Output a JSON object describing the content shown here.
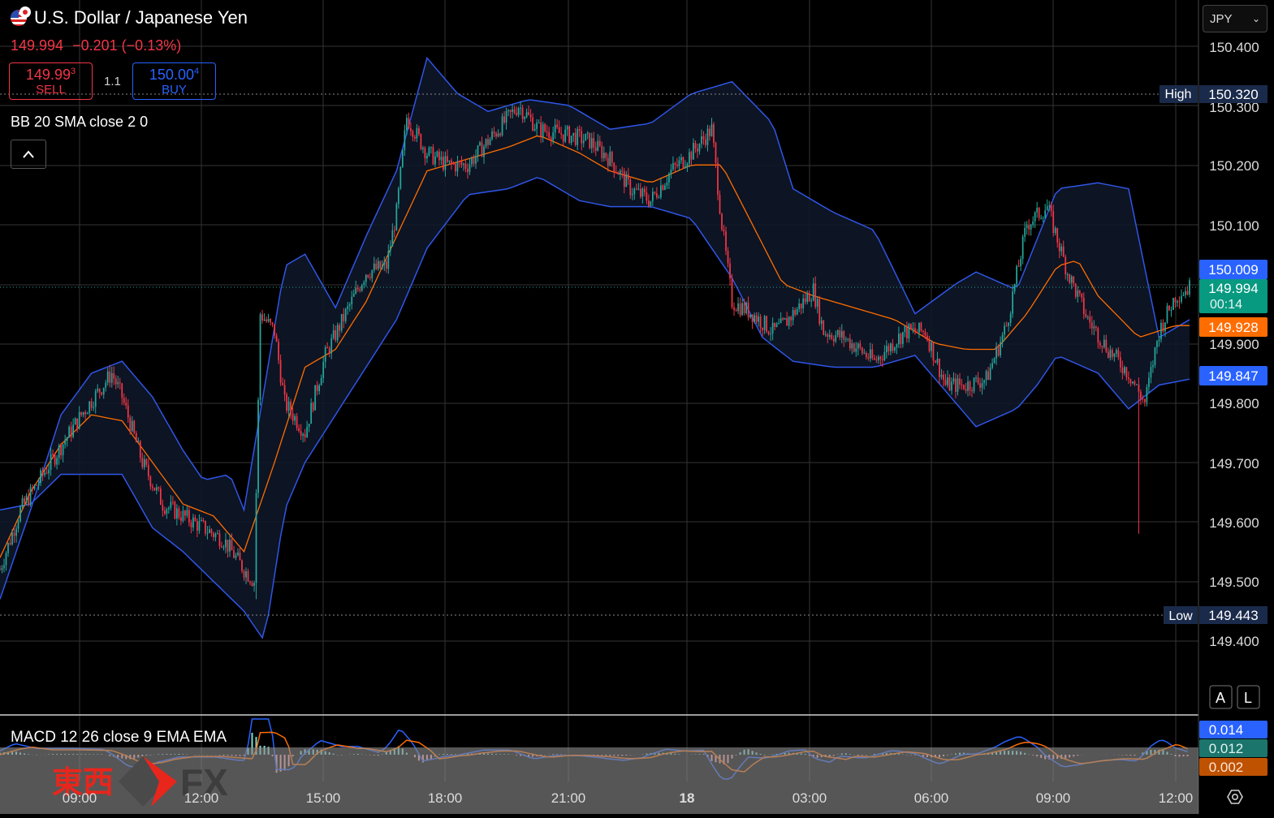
{
  "header": {
    "title": "U.S. Dollar / Japanese Yen",
    "last": "149.994",
    "change": "−0.201",
    "change_pct": "(−0.13%)",
    "sell_price": "149.99",
    "sell_sup": "3",
    "sell_label": "SELL",
    "buy_price": "150.00",
    "buy_sup": "4",
    "buy_label": "BUY",
    "spread": "1.1",
    "indicator": "BB 20 SMA close 2 0"
  },
  "currency_selector": "JPY",
  "macd_label": "MACD 12 26 close 9 EMA EMA",
  "price_axis": {
    "ticks": [
      "150.400",
      "150.300",
      "150.200",
      "150.100",
      "149.900",
      "149.800",
      "149.700",
      "149.600",
      "149.500",
      "149.400"
    ],
    "high_label": "High",
    "high_value": "150.320",
    "low_label": "Low",
    "low_value": "149.443",
    "bb_upper": "150.009",
    "last_price": "149.994",
    "countdown": "00:14",
    "bb_basis": "149.928",
    "bb_lower": "149.847",
    "auto_btn": "A",
    "log_btn": "L"
  },
  "macd_axis": {
    "macd": "0.014",
    "histogram": "0.012",
    "signal": "0.002"
  },
  "time_axis": [
    "09:00",
    "12:00",
    "15:00",
    "18:00",
    "21:00",
    "18",
    "03:00",
    "06:00",
    "09:00",
    "12:00"
  ],
  "watermark": {
    "kanji": "東西",
    "brand": "FX"
  },
  "colors": {
    "up": "#26a69a",
    "down": "#f23645",
    "bb_band": "#2962ff",
    "bb_basis": "#ff6d00",
    "background": "#000000"
  },
  "chart_data": {
    "type": "candlestick",
    "ylim": [
      149.3,
      150.46
    ],
    "bollinger_upper": [
      [
        0,
        149.47
      ],
      [
        15,
        149.62
      ],
      [
        30,
        149.78
      ],
      [
        45,
        149.85
      ],
      [
        60,
        149.87
      ],
      [
        75,
        149.81
      ],
      [
        90,
        149.72
      ],
      [
        100,
        149.67
      ],
      [
        113,
        149.68
      ],
      [
        120,
        149.62
      ],
      [
        140,
        150.03
      ],
      [
        150,
        150.05
      ],
      [
        165,
        149.96
      ],
      [
        180,
        150.08
      ],
      [
        195,
        150.19
      ],
      [
        210,
        150.38
      ],
      [
        225,
        150.32
      ],
      [
        240,
        150.29
      ],
      [
        260,
        150.31
      ],
      [
        280,
        150.3
      ],
      [
        300,
        150.26
      ],
      [
        320,
        150.27
      ],
      [
        340,
        150.32
      ],
      [
        360,
        150.34
      ],
      [
        380,
        150.27
      ],
      [
        390,
        150.16
      ],
      [
        410,
        150.12
      ],
      [
        430,
        150.09
      ],
      [
        450,
        149.95
      ],
      [
        470,
        150.0
      ],
      [
        480,
        150.02
      ],
      [
        500,
        149.99
      ],
      [
        520,
        150.16
      ],
      [
        540,
        150.17
      ],
      [
        555,
        150.16
      ],
      [
        570,
        149.91
      ],
      [
        585,
        149.94
      ]
    ],
    "bollinger_basis": [
      [
        0,
        149.54
      ],
      [
        15,
        149.65
      ],
      [
        30,
        149.73
      ],
      [
        45,
        149.78
      ],
      [
        60,
        149.77
      ],
      [
        75,
        149.7
      ],
      [
        90,
        149.63
      ],
      [
        105,
        149.61
      ],
      [
        120,
        149.55
      ],
      [
        135,
        149.7
      ],
      [
        150,
        149.86
      ],
      [
        165,
        149.89
      ],
      [
        180,
        149.97
      ],
      [
        195,
        150.08
      ],
      [
        210,
        150.19
      ],
      [
        230,
        150.21
      ],
      [
        250,
        150.23
      ],
      [
        265,
        150.25
      ],
      [
        285,
        150.22
      ],
      [
        300,
        150.19
      ],
      [
        320,
        150.17
      ],
      [
        340,
        150.2
      ],
      [
        355,
        150.2
      ],
      [
        370,
        150.1
      ],
      [
        385,
        150.0
      ],
      [
        400,
        149.98
      ],
      [
        420,
        149.96
      ],
      [
        440,
        149.94
      ],
      [
        460,
        149.9
      ],
      [
        475,
        149.89
      ],
      [
        490,
        149.89
      ],
      [
        505,
        149.95
      ],
      [
        520,
        150.03
      ],
      [
        530,
        150.04
      ],
      [
        540,
        149.98
      ],
      [
        560,
        149.91
      ],
      [
        578,
        149.93
      ]
    ],
    "bollinger_lower": [
      [
        0,
        149.62
      ],
      [
        15,
        149.63
      ],
      [
        30,
        149.68
      ],
      [
        45,
        149.68
      ],
      [
        60,
        149.68
      ],
      [
        75,
        149.59
      ],
      [
        90,
        149.55
      ],
      [
        105,
        149.5
      ],
      [
        120,
        149.45
      ],
      [
        130,
        149.4
      ],
      [
        140,
        149.62
      ],
      [
        150,
        149.7
      ],
      [
        165,
        149.78
      ],
      [
        180,
        149.86
      ],
      [
        195,
        149.94
      ],
      [
        210,
        150.06
      ],
      [
        230,
        150.15
      ],
      [
        250,
        150.16
      ],
      [
        265,
        150.18
      ],
      [
        285,
        150.14
      ],
      [
        300,
        150.13
      ],
      [
        320,
        150.13
      ],
      [
        340,
        150.11
      ],
      [
        360,
        150.01
      ],
      [
        375,
        149.91
      ],
      [
        390,
        149.87
      ],
      [
        410,
        149.86
      ],
      [
        430,
        149.86
      ],
      [
        450,
        149.88
      ],
      [
        465,
        149.82
      ],
      [
        480,
        149.76
      ],
      [
        500,
        149.79
      ],
      [
        510,
        149.83
      ],
      [
        520,
        149.88
      ],
      [
        540,
        149.85
      ],
      [
        555,
        149.79
      ],
      [
        570,
        149.83
      ],
      [
        585,
        149.84
      ]
    ],
    "price_path": [
      [
        0,
        149.52
      ],
      [
        10,
        149.62
      ],
      [
        25,
        149.7
      ],
      [
        40,
        149.78
      ],
      [
        55,
        149.85
      ],
      [
        60,
        149.81
      ],
      [
        70,
        149.7
      ],
      [
        80,
        149.63
      ],
      [
        95,
        149.6
      ],
      [
        110,
        149.57
      ],
      [
        120,
        149.52
      ],
      [
        125,
        149.5
      ],
      [
        128,
        149.95
      ],
      [
        135,
        149.92
      ],
      [
        140,
        149.8
      ],
      [
        150,
        149.75
      ],
      [
        160,
        149.88
      ],
      [
        170,
        149.95
      ],
      [
        180,
        150.02
      ],
      [
        190,
        150.03
      ],
      [
        195,
        150.12
      ],
      [
        200,
        150.28
      ],
      [
        210,
        150.22
      ],
      [
        220,
        150.2
      ],
      [
        230,
        150.2
      ],
      [
        240,
        150.24
      ],
      [
        255,
        150.3
      ],
      [
        265,
        150.26
      ],
      [
        280,
        150.25
      ],
      [
        290,
        150.24
      ],
      [
        300,
        150.21
      ],
      [
        310,
        150.16
      ],
      [
        320,
        150.14
      ],
      [
        330,
        150.19
      ],
      [
        340,
        150.22
      ],
      [
        350,
        150.26
      ],
      [
        355,
        150.1
      ],
      [
        360,
        149.97
      ],
      [
        370,
        149.95
      ],
      [
        380,
        149.92
      ],
      [
        385,
        149.93
      ],
      [
        400,
        149.99
      ],
      [
        405,
        149.92
      ],
      [
        415,
        149.91
      ],
      [
        430,
        149.87
      ],
      [
        445,
        149.92
      ],
      [
        455,
        149.92
      ],
      [
        465,
        149.83
      ],
      [
        475,
        149.83
      ],
      [
        485,
        149.84
      ],
      [
        495,
        149.93
      ],
      [
        505,
        150.1
      ],
      [
        515,
        150.13
      ],
      [
        525,
        150.02
      ],
      [
        535,
        149.94
      ],
      [
        545,
        149.89
      ],
      [
        555,
        149.85
      ],
      [
        563,
        149.8
      ],
      [
        570,
        149.92
      ],
      [
        578,
        149.98
      ],
      [
        585,
        149.994
      ]
    ],
    "high": 150.32,
    "low": 149.443,
    "last": 149.994,
    "x_ticks": [
      "09:00",
      "12:00",
      "15:00",
      "18:00",
      "21:00",
      "18",
      "03:00",
      "06:00",
      "09:00",
      "12:00"
    ]
  }
}
